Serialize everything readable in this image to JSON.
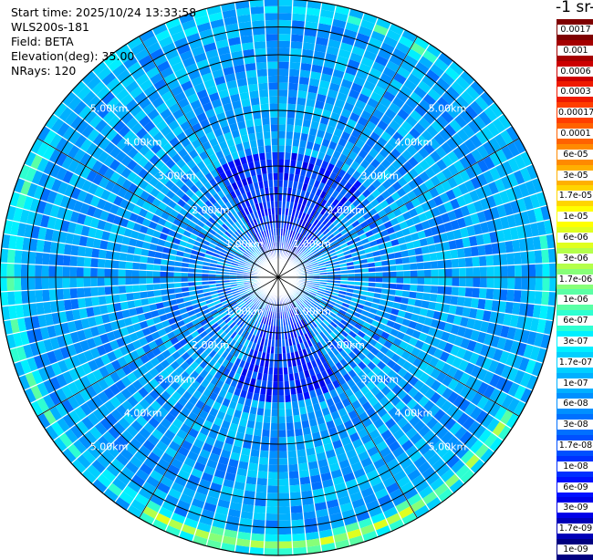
{
  "info": {
    "start_time": "Start time: 2025/10/24 13:33:58",
    "instrument": "WLS200s-181",
    "field": "Field: BETA",
    "elevation": "Elevation(deg): 35.00",
    "nrays": "NRays: 120"
  },
  "colorbar": {
    "title": "-1 sr-",
    "labels": [
      "0.0017",
      "0.001",
      "0.0006",
      "0.0003",
      "0.00017",
      "0.0001",
      "6e-05",
      "3e-05",
      "1.7e-05",
      "1e-05",
      "6e-06",
      "3e-06",
      "1.7e-06",
      "1e-06",
      "6e-07",
      "3e-07",
      "1.7e-07",
      "1e-07",
      "6e-08",
      "3e-08",
      "1.7e-08",
      "1e-08",
      "6e-09",
      "3e-09",
      "1.7e-09",
      "1e-09"
    ],
    "colors": [
      "#7f0000",
      "#a50000",
      "#cc0000",
      "#ef1a00",
      "#ff3e00",
      "#ff6200",
      "#ff8a00",
      "#ffb000",
      "#ffd500",
      "#ffff00",
      "#e0ff1e",
      "#b4ff4a",
      "#87ff78",
      "#5affa5",
      "#2effd1",
      "#00f0ff",
      "#00d0ff",
      "#00b0ff",
      "#0090ff",
      "#0070ff",
      "#0050ff",
      "#0030ff",
      "#0010ff",
      "#0000e8",
      "#0000b8",
      "#000080"
    ]
  },
  "rings": {
    "labels": [
      "1.00km",
      "2.00km",
      "3.00km",
      "4.00km",
      "5.00km"
    ]
  },
  "chart_data": {
    "type": "heatmap",
    "projection": "polar PPI scan",
    "field": "BETA",
    "elevation_deg": 35.0,
    "n_rays": 120,
    "range_km": [
      0,
      5.0
    ],
    "range_ring_labels_km": [
      1,
      2,
      3,
      4,
      5
    ],
    "dominant_value_range": "1e-08 to 1e-07",
    "notes": "Near-field sectors show low values (~1e-09 to 3e-09); an outer ring near 4.6-5.1 km shows elevated backscatter (1e-07 to 6e-06), strongest in the south and west.",
    "colorscale": [
      "1e-09",
      "1.7e-09",
      "3e-09",
      "6e-09",
      "1e-08",
      "1.7e-08",
      "3e-08",
      "6e-08",
      "1e-07",
      "1.7e-07",
      "3e-07",
      "6e-07",
      "1e-06",
      "1.7e-06",
      "3e-06",
      "6e-06",
      "1e-05",
      "1.7e-05",
      "3e-05",
      "6e-05",
      "0.0001",
      "0.00017",
      "0.0003",
      "0.0006",
      "0.001",
      "0.0017"
    ]
  }
}
